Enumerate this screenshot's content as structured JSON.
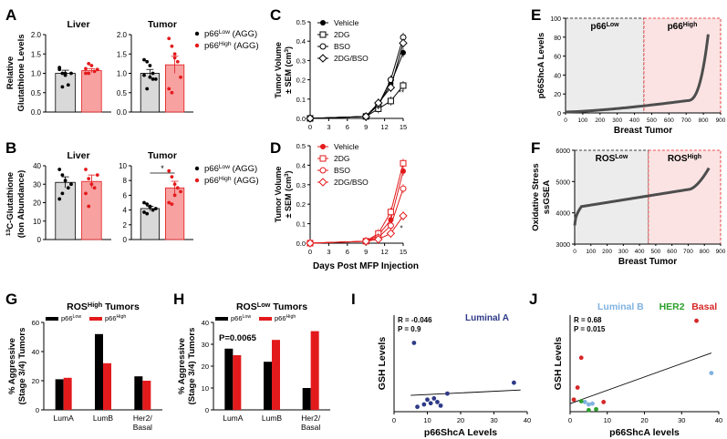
{
  "colors": {
    "black": "#000000",
    "red": "#e31a1c",
    "gray_bar": "#d9d9d9",
    "pink_bar": "#f7a1a1",
    "low_shade": "#ececec",
    "high_shade": "#fbe3e3",
    "line_gray": "#4d4d4d",
    "lumB": "#7fb2e0",
    "her2": "#2ca02c",
    "basal": "#d62728",
    "lumA": "#2e3a87"
  },
  "panel_letters": [
    "A",
    "B",
    "C",
    "D",
    "E",
    "F",
    "G",
    "H",
    "I",
    "J"
  ],
  "chart_data": [
    {
      "id": "A1",
      "panel": "A",
      "type": "bar",
      "title": "Liver",
      "ylabel": "Relative Glutathione Levels",
      "ylim": [
        0,
        2.0
      ],
      "yticks": [
        "0.0",
        "0.5",
        "1.0",
        "1.5",
        "2.0"
      ],
      "series": [
        {
          "name": "p66Low (AGG)",
          "value": 1.0,
          "sem": 0.08,
          "points": [
            1.1,
            1.0,
            0.95,
            0.7,
            1.0,
            1.15,
            0.65,
            1.0
          ]
        },
        {
          "name": "p66High (AGG)",
          "value": 1.07,
          "sem": 0.05,
          "points": [
            1.12,
            1.0,
            1.2,
            1.05,
            1.1,
            1.0,
            1.25
          ]
        }
      ]
    },
    {
      "id": "A2",
      "panel": "A",
      "type": "bar",
      "title": "Tumor",
      "ylim": [
        0,
        2.0
      ],
      "yticks": [
        "0.0",
        "0.5",
        "1.0",
        "1.5",
        "2.0"
      ],
      "series": [
        {
          "name": "p66Low (AGG)",
          "value": 1.0,
          "sem": 0.1,
          "points": [
            1.35,
            1.3,
            0.9,
            1.0,
            0.85,
            0.95,
            0.6,
            1.2,
            0.85
          ]
        },
        {
          "name": "p66High (AGG)",
          "value": 1.22,
          "sem": 0.22,
          "points": [
            1.9,
            1.7,
            1.4,
            1.3,
            0.9,
            0.6,
            0.5,
            1.5
          ]
        }
      ],
      "legend": [
        {
          "prefix": "p66",
          "sup": "Low",
          "suffix": " (AGG)"
        },
        {
          "prefix": "p66",
          "sup": "High",
          "suffix": " (AGG)"
        }
      ]
    },
    {
      "id": "B1",
      "panel": "B",
      "type": "bar",
      "title": "Liver",
      "ylabel": "13C-Glutathione (Ion Abundance)",
      "ylim": [
        0,
        40
      ],
      "yticks": [
        "0",
        "10",
        "20",
        "30",
        "40"
      ],
      "series": [
        {
          "name": "p66Low (AGG)",
          "value": 31,
          "sem": 3,
          "points": [
            38,
            35,
            32,
            28,
            30,
            22,
            25
          ]
        },
        {
          "name": "p66High (AGG)",
          "value": 31.5,
          "sem": 3.5,
          "points": [
            38,
            33,
            30,
            28,
            35,
            25,
            18
          ]
        }
      ]
    },
    {
      "id": "B2",
      "panel": "B",
      "type": "bar",
      "title": "Tumor",
      "ylim": [
        0,
        10
      ],
      "yticks": [
        "0",
        "2",
        "4",
        "6",
        "8",
        "10"
      ],
      "annotation": "*",
      "series": [
        {
          "name": "p66Low (AGG)",
          "value": 4.2,
          "sem": 0.3,
          "points": [
            5.0,
            4.8,
            4.5,
            4.0,
            4.2,
            3.7,
            3.5,
            4.4
          ]
        },
        {
          "name": "p66High (AGG)",
          "value": 7.0,
          "sem": 0.9,
          "points": [
            9.3,
            8.5,
            7.5,
            7.0,
            6.5,
            5.0,
            4.8,
            6.0
          ]
        }
      ],
      "legend": [
        {
          "prefix": "p66",
          "sup": "Low",
          "suffix": " (AGG)"
        },
        {
          "prefix": "p66",
          "sup": "High",
          "suffix": " (AGG)"
        }
      ]
    },
    {
      "id": "C",
      "panel": "C",
      "type": "line",
      "ylabel": "Tumor Volume",
      "ylabel2": "± SEM (cm",
      "ylabel3": "3",
      "ylabel4": ")",
      "xlim": [
        0,
        15
      ],
      "ylim": [
        0,
        0.5
      ],
      "xticks": [
        "0",
        "3",
        "6",
        "9",
        "12",
        "15"
      ],
      "yticks": [
        "0.0",
        "0.1",
        "0.2",
        "0.3",
        "0.4",
        "0.5"
      ],
      "x": [
        0,
        9,
        11,
        13,
        15
      ],
      "annotation": "**",
      "series": [
        {
          "name": "Vehicle",
          "marker": "filled",
          "values": [
            0,
            0.01,
            0.07,
            0.18,
            0.34
          ]
        },
        {
          "name": "2DG",
          "marker": "square",
          "values": [
            0,
            0.01,
            0.05,
            0.09,
            0.17
          ]
        },
        {
          "name": "BSO",
          "marker": "open",
          "values": [
            0,
            0.01,
            0.07,
            0.2,
            0.42
          ]
        },
        {
          "name": "2DG/BSO",
          "marker": "diamond",
          "values": [
            0,
            0.01,
            0.08,
            0.16,
            0.39
          ]
        }
      ]
    },
    {
      "id": "D",
      "panel": "D",
      "type": "line",
      "xlabel": "Days Post MFP Injection",
      "ylabel": "Tumor Volume",
      "ylabel2": "± SEM (cm",
      "ylabel3": "3",
      "ylabel4": ")",
      "xlim": [
        0,
        15
      ],
      "ylim": [
        0,
        0.5
      ],
      "xticks": [
        "0",
        "3",
        "6",
        "9",
        "12",
        "15"
      ],
      "yticks": [
        "0.0",
        "0.1",
        "0.2",
        "0.3",
        "0.4",
        "0.5"
      ],
      "x": [
        0,
        9,
        11,
        13,
        15
      ],
      "annotation": "*",
      "series": [
        {
          "name": "Vehicle",
          "marker": "filled",
          "values": [
            0,
            0.01,
            0.04,
            0.12,
            0.37
          ]
        },
        {
          "name": "2DG",
          "marker": "square",
          "values": [
            0,
            0.01,
            0.05,
            0.16,
            0.41
          ]
        },
        {
          "name": "BSO",
          "marker": "open",
          "values": [
            0,
            0.01,
            0.03,
            0.09,
            0.28
          ]
        },
        {
          "name": "2DG/BSO",
          "marker": "diamond",
          "values": [
            0,
            0.01,
            0.02,
            0.05,
            0.14
          ]
        }
      ]
    },
    {
      "id": "E",
      "panel": "E",
      "type": "scatter",
      "ylabel": "p66ShcA Levels",
      "xlabel": "Breast Tumor",
      "xlim": [
        0,
        900
      ],
      "ylim": [
        0,
        100
      ],
      "xticks": [
        "0",
        "100",
        "200",
        "300",
        "400",
        "500",
        "600",
        "700",
        "800",
        "900"
      ],
      "yticks": [
        "0",
        "20",
        "40",
        "60",
        "80",
        "100"
      ],
      "split_x": 455,
      "regions": [
        {
          "prefix": "p66",
          "sup": "Low"
        },
        {
          "prefix": "p66",
          "sup": "High"
        }
      ],
      "curve": {
        "n": 830,
        "start": 1,
        "mid": 13,
        "end": 86
      }
    },
    {
      "id": "F",
      "panel": "F",
      "type": "scatter",
      "ylabel": "Oxidative Stress",
      "ylabel2": "ssGSEA",
      "xlabel": "Breast Tumor",
      "xlim": [
        0,
        900
      ],
      "ylim": [
        3000,
        6000
      ],
      "xticks": [
        "0",
        "100",
        "200",
        "300",
        "400",
        "500",
        "600",
        "700",
        "800",
        "900"
      ],
      "yticks": [
        "3000",
        "4000",
        "5000",
        "6000"
      ],
      "split_x": 455,
      "regions": [
        {
          "prefix": "ROS",
          "sup": "Low"
        },
        {
          "prefix": "ROS",
          "sup": "High"
        }
      ],
      "curve": {
        "n": 830,
        "start": 3600,
        "mid": 4600,
        "end": 5450
      }
    },
    {
      "id": "G",
      "panel": "G",
      "type": "bar",
      "title_prefix": "ROS",
      "title_sup": "High",
      "title_suffix": " Tumors",
      "ylabel": "% Aggressive (Stage 3/4) Tumors",
      "categories": [
        "LumA",
        "LumB",
        "Her2/ Basal"
      ],
      "ylim": [
        0,
        60
      ],
      "series": [
        {
          "name": "p66Low",
          "values": [
            21,
            52,
            23
          ]
        },
        {
          "name": "p66High",
          "values": [
            22,
            32,
            20
          ]
        }
      ]
    },
    {
      "id": "H",
      "panel": "H",
      "type": "bar",
      "title_prefix": "ROS",
      "title_sup": "Low",
      "title_suffix": " Tumors",
      "ylabel": "% Aggressive (Stage 3/4) Tumors",
      "categories": [
        "LumA",
        "LumB",
        "Her2/ Basal"
      ],
      "ylim": [
        0,
        40
      ],
      "annotation": "P=0.0065",
      "series": [
        {
          "name": "p66Low",
          "values": [
            28,
            22,
            10
          ]
        },
        {
          "name": "p66High",
          "values": [
            25,
            32,
            36
          ]
        }
      ]
    },
    {
      "id": "I",
      "panel": "I",
      "type": "scatter",
      "title": "Luminal A",
      "xlabel": "p66ShcA Levels",
      "ylabel": "GSH Levels",
      "xlim": [
        0,
        40
      ],
      "ylim": [
        0,
        8
      ],
      "xticks": [
        "0",
        "10",
        "20",
        "30",
        "40"
      ],
      "stats": [
        "R = -0.046",
        "P = 0.9"
      ],
      "points": [
        [
          6,
          5.7
        ],
        [
          7,
          0.4
        ],
        [
          9,
          0.6
        ],
        [
          10,
          1.0
        ],
        [
          11,
          0.7
        ],
        [
          12,
          1.1
        ],
        [
          13,
          0.8
        ],
        [
          14,
          0.5
        ],
        [
          16,
          1.5
        ],
        [
          36,
          2.4
        ]
      ],
      "fit": [
        [
          5,
          1.35
        ],
        [
          38,
          1.8
        ]
      ]
    },
    {
      "id": "J",
      "panel": "J",
      "type": "scatter",
      "xlabel": "p66ShcA levels",
      "ylabel": "GSH Levels",
      "xlim": [
        0,
        40
      ],
      "ylim": [
        0,
        12
      ],
      "xticks": [
        "0",
        "10",
        "20",
        "30",
        "40"
      ],
      "stats": [
        "R = 0.68",
        "P = 0.015"
      ],
      "groups": [
        {
          "name": "Luminal B",
          "color_key": "lumB",
          "points": [
            [
              4,
              1.2
            ],
            [
              5,
              0.9
            ],
            [
              6,
              1.0
            ],
            [
              38,
              4.8
            ]
          ]
        },
        {
          "name": "HER2",
          "color_key": "her2",
          "points": [
            [
              3,
              1.3
            ],
            [
              5,
              0.2
            ],
            [
              7,
              0.3
            ]
          ]
        },
        {
          "name": "Basal",
          "color_key": "basal",
          "points": [
            [
              1,
              1.5
            ],
            [
              2,
              3.0
            ],
            [
              3,
              6.7
            ],
            [
              9,
              1.2
            ],
            [
              34,
              11.3
            ]
          ]
        }
      ],
      "fit": [
        [
          0,
          1.0
        ],
        [
          38,
          7.3
        ]
      ]
    }
  ]
}
